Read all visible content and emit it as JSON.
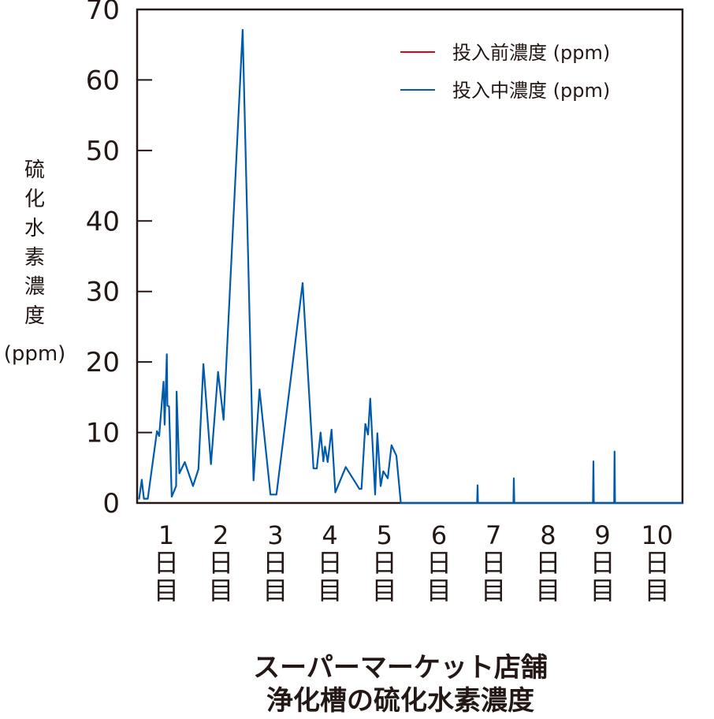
{
  "chart_data": {
    "type": "line",
    "title": [
      "スーパーマーケット店舗",
      "浄化槽の硫化水素濃度"
    ],
    "ylabel": [
      "硫",
      "化",
      "水",
      "素",
      "濃",
      "度",
      "(ppm)"
    ],
    "xlabel": "",
    "ylim": [
      0,
      70
    ],
    "xlim": [
      0.5,
      10.5
    ],
    "yticks": [
      0,
      10,
      20,
      30,
      40,
      50,
      60,
      70
    ],
    "xticks": [
      {
        "value": 1,
        "label": [
          "1",
          "日",
          "目"
        ]
      },
      {
        "value": 2,
        "label": [
          "2",
          "日",
          "目"
        ]
      },
      {
        "value": 3,
        "label": [
          "3",
          "日",
          "目"
        ]
      },
      {
        "value": 4,
        "label": [
          "4",
          "日",
          "目"
        ]
      },
      {
        "value": 5,
        "label": [
          "5",
          "日",
          "目"
        ]
      },
      {
        "value": 6,
        "label": [
          "6",
          "日",
          "目"
        ]
      },
      {
        "value": 7,
        "label": [
          "7",
          "日",
          "目"
        ]
      },
      {
        "value": 8,
        "label": [
          "8",
          "日",
          "目"
        ]
      },
      {
        "value": 9,
        "label": [
          "9",
          "日",
          "目"
        ]
      },
      {
        "value": 10,
        "label": [
          "10",
          "日",
          "目"
        ]
      }
    ],
    "grid": false,
    "legend_placement": "top-right",
    "series": [
      {
        "name": "投入前濃度 (ppm)",
        "color": "#e60012",
        "points": []
      },
      {
        "name": "投入中濃度 (ppm)",
        "color": "#005bac",
        "points": [
          [
            0.5,
            0.5
          ],
          [
            0.55,
            3.3
          ],
          [
            0.59,
            0.6
          ],
          [
            0.66,
            0.6
          ],
          [
            0.83,
            10.2
          ],
          [
            0.87,
            9.5
          ],
          [
            0.95,
            17.2
          ],
          [
            0.97,
            11.1
          ],
          [
            1.01,
            21.1
          ],
          [
            1.02,
            13.8
          ],
          [
            1.05,
            13.7
          ],
          [
            1.1,
            0.9
          ],
          [
            1.18,
            2.4
          ],
          [
            1.19,
            15.8
          ],
          [
            1.24,
            4.2
          ],
          [
            1.34,
            5.8
          ],
          [
            1.49,
            2.4
          ],
          [
            1.59,
            4.8
          ],
          [
            1.68,
            19.7
          ],
          [
            1.82,
            5.5
          ],
          [
            1.95,
            18.6
          ],
          [
            2.05,
            11.8
          ],
          [
            2.4,
            67.1
          ],
          [
            2.6,
            3.2
          ],
          [
            2.71,
            16.1
          ],
          [
            2.91,
            1.2
          ],
          [
            3.02,
            1.2
          ],
          [
            3.5,
            31.2
          ],
          [
            3.7,
            4.9
          ],
          [
            3.76,
            4.9
          ],
          [
            3.83,
            10.0
          ],
          [
            3.88,
            5.9
          ],
          [
            3.91,
            8.0
          ],
          [
            3.96,
            5.8
          ],
          [
            4.03,
            10.4
          ],
          [
            4.1,
            1.5
          ],
          [
            4.29,
            5.1
          ],
          [
            4.54,
            2.0
          ],
          [
            4.58,
            2.0
          ],
          [
            4.65,
            11.2
          ],
          [
            4.7,
            9.7
          ],
          [
            4.74,
            14.8
          ],
          [
            4.83,
            1.2
          ],
          [
            4.87,
            9.9
          ],
          [
            4.93,
            2.4
          ],
          [
            4.98,
            4.5
          ],
          [
            5.06,
            3.5
          ],
          [
            5.13,
            8.2
          ],
          [
            5.22,
            6.7
          ],
          [
            5.3,
            0
          ],
          [
            6.7,
            0
          ],
          [
            6.708,
            2.5
          ],
          [
            6.716,
            0
          ],
          [
            7.365,
            0
          ],
          [
            7.373,
            3.5
          ],
          [
            7.381,
            0
          ],
          [
            8.824,
            0
          ],
          [
            8.832,
            5.9
          ],
          [
            8.84,
            0
          ],
          [
            9.212,
            0
          ],
          [
            9.22,
            7.3
          ],
          [
            9.228,
            0
          ],
          [
            10.47,
            0
          ]
        ]
      }
    ]
  }
}
